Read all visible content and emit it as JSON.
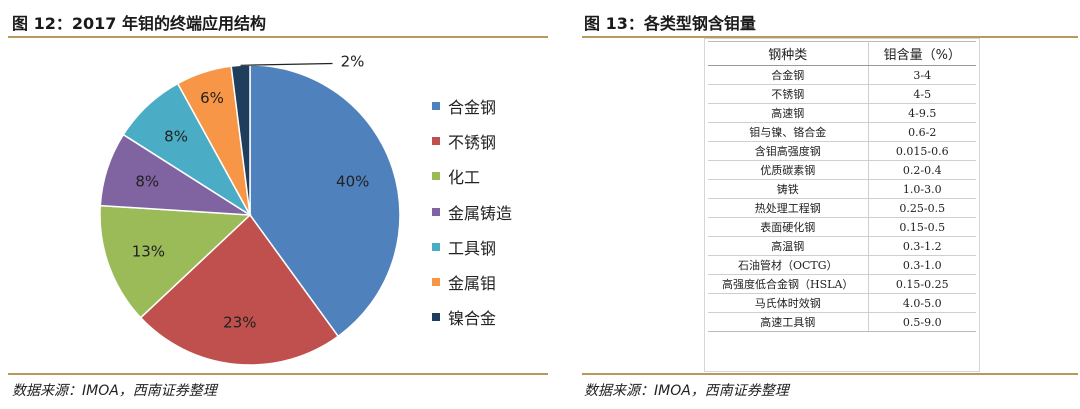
{
  "left": {
    "title": "图 12：2017 年钼的终端应用结构",
    "source": "数据来源：IMOA，西南证券整理"
  },
  "right": {
    "title": "图 13：各类型钢含钼量",
    "source": "数据来源：IMOA，西南证券整理",
    "table": {
      "headers": [
        "钢种类",
        "钼含量（%）"
      ],
      "rows": [
        [
          "合金钢",
          "3-4"
        ],
        [
          "不锈钢",
          "4-5"
        ],
        [
          "高速钢",
          "4-9.5"
        ],
        [
          "钼与镍、铬合金",
          "0.6-2"
        ],
        [
          "含钼高强度钢",
          "0.015-0.6"
        ],
        [
          "优质碳素钢",
          "0.2-0.4"
        ],
        [
          "铸铁",
          "1.0-3.0"
        ],
        [
          "热处理工程钢",
          "0.25-0.5"
        ],
        [
          "表面硬化钢",
          "0.15-0.5"
        ],
        [
          "高温钢",
          "0.3-1.2"
        ],
        [
          "石油管材（OCTG）",
          "0.3-1.0"
        ],
        [
          "高强度低合金钢（HSLA）",
          "0.15-0.25"
        ],
        [
          "马氏体时效钢",
          "4.0-5.0"
        ],
        [
          "高速工具钢",
          "0.5-9.0"
        ]
      ]
    }
  },
  "chart_data": {
    "type": "pie",
    "title": "",
    "legend_position": "right",
    "start_angle_deg": 0,
    "direction": "clockwise",
    "slices": [
      {
        "name": "合金钢",
        "value": 40,
        "label": "40%",
        "color": "#4f81bd"
      },
      {
        "name": "不锈钢",
        "value": 23,
        "label": "23%",
        "color": "#c0504d"
      },
      {
        "name": "化工",
        "value": 13,
        "label": "13%",
        "color": "#9bbb59"
      },
      {
        "name": "金属铸造",
        "value": 8,
        "label": "8%",
        "color": "#8064a2"
      },
      {
        "name": "工具钢",
        "value": 8,
        "label": "8%",
        "color": "#4bacc6"
      },
      {
        "name": "金属钼",
        "value": 6,
        "label": "6%",
        "color": "#f79646"
      },
      {
        "name": "镍合金",
        "value": 2,
        "label": "2%",
        "color": "#1f3d5c"
      }
    ]
  }
}
